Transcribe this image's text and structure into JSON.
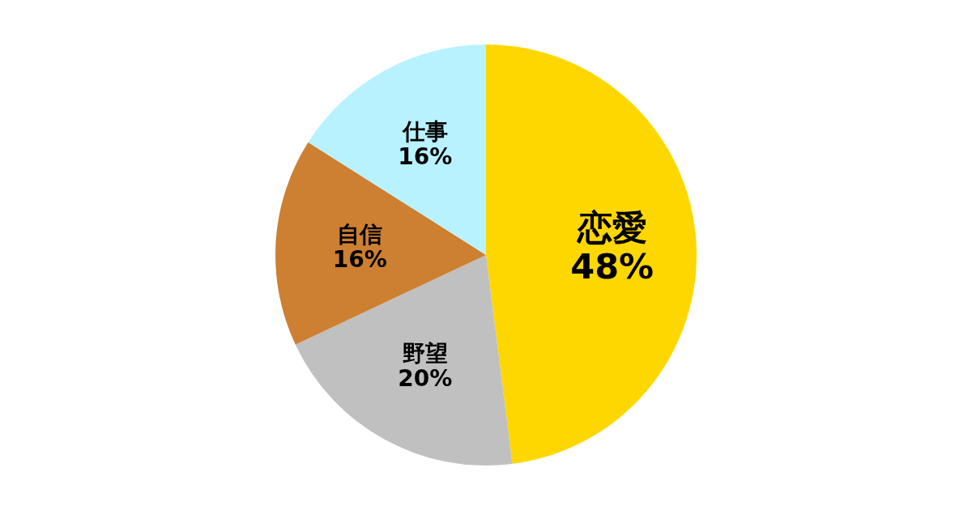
{
  "chart_data": {
    "type": "pie",
    "categories": [
      "恋愛",
      "野望",
      "自信",
      "仕事"
    ],
    "values": [
      48,
      20,
      16,
      16
    ],
    "colors": [
      "#ffd700",
      "#c0c0c0",
      "#cd7f32",
      "#b9f2ff"
    ],
    "value_labels": [
      "48%",
      "20%",
      "16%",
      "16%"
    ]
  }
}
